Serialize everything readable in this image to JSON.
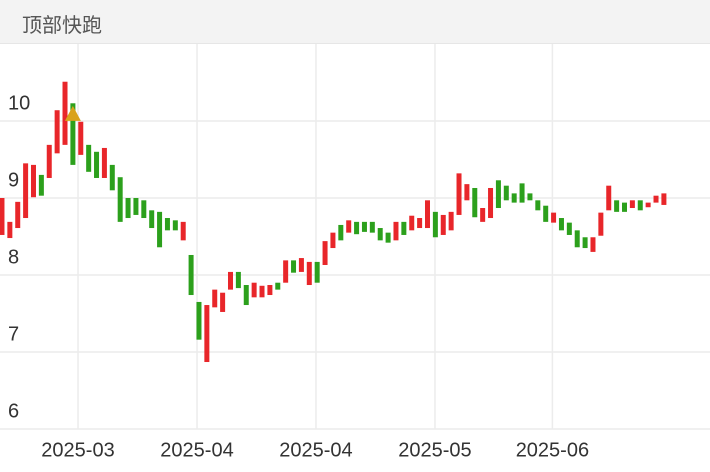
{
  "chart_data": {
    "type": "candlestick",
    "title": "顶部快跑",
    "up_color": "#e8262a",
    "down_color": "#2ca01c",
    "grid": true,
    "ylim": [
      6,
      11
    ],
    "yticks": [
      6,
      7,
      8,
      9,
      10
    ],
    "xlim": [
      -0.25,
      89.85
    ],
    "xticks": [
      {
        "value": 9.65,
        "label": "2025-03"
      },
      {
        "value": 24.75,
        "label": "2025-04"
      },
      {
        "value": 39.85,
        "label": "2025-04"
      },
      {
        "value": 54.95,
        "label": "2025-05"
      },
      {
        "value": 69.85,
        "label": "2025-06"
      }
    ],
    "open": [
      8.52,
      8.48,
      8.61,
      8.74,
      9.01,
      9.3,
      9.26,
      9.58,
      9.69,
      10.23,
      9.56,
      9.69,
      9.6,
      9.26,
      9.43,
      9.27,
      9.0,
      9.0,
      8.97,
      8.84,
      8.82,
      8.74,
      8.71,
      8.45,
      8.26,
      7.65,
      6.87,
      7.58,
      7.52,
      7.81,
      8.04,
      7.87,
      7.71,
      7.71,
      7.74,
      7.9,
      7.9,
      8.19,
      8.04,
      7.87,
      8.17,
      8.13,
      8.35,
      8.65,
      8.55,
      8.69,
      8.69,
      8.69,
      8.61,
      8.55,
      8.45,
      8.69,
      8.58,
      8.61,
      8.61,
      8.82,
      8.52,
      8.58,
      8.78,
      8.97,
      9.13,
      8.69,
      8.74,
      9.23,
      9.16,
      9.06,
      9.19,
      9.06,
      8.97,
      8.9,
      8.68,
      8.74,
      8.68,
      8.58,
      8.49,
      8.3,
      8.51,
      8.84,
      8.97,
      8.94,
      8.87,
      8.97,
      8.88,
      8.94,
      8.91
    ],
    "close": [
      9.0,
      8.69,
      8.95,
      9.45,
      9.43,
      9.03,
      9.69,
      10.14,
      10.51,
      9.43,
      9.99,
      9.34,
      9.26,
      9.65,
      9.1,
      8.69,
      8.74,
      8.78,
      8.74,
      8.61,
      8.36,
      8.58,
      8.58,
      8.69,
      7.74,
      7.16,
      7.61,
      7.81,
      7.77,
      8.04,
      7.83,
      7.61,
      7.9,
      7.86,
      7.87,
      7.81,
      8.19,
      8.03,
      8.22,
      8.17,
      7.9,
      8.44,
      8.55,
      8.45,
      8.71,
      8.53,
      8.56,
      8.55,
      8.45,
      8.42,
      8.69,
      8.52,
      8.77,
      8.74,
      8.97,
      8.49,
      8.78,
      8.82,
      9.32,
      9.18,
      8.75,
      8.87,
      9.13,
      8.87,
      8.97,
      8.94,
      8.94,
      8.97,
      8.84,
      8.69,
      8.81,
      8.58,
      8.52,
      8.36,
      8.35,
      8.49,
      8.81,
      9.16,
      8.82,
      8.82,
      8.97,
      8.84,
      8.94,
      9.03,
      9.06
    ],
    "marker": {
      "index": 9,
      "value": 10.08,
      "color": "#d9a21b"
    }
  }
}
